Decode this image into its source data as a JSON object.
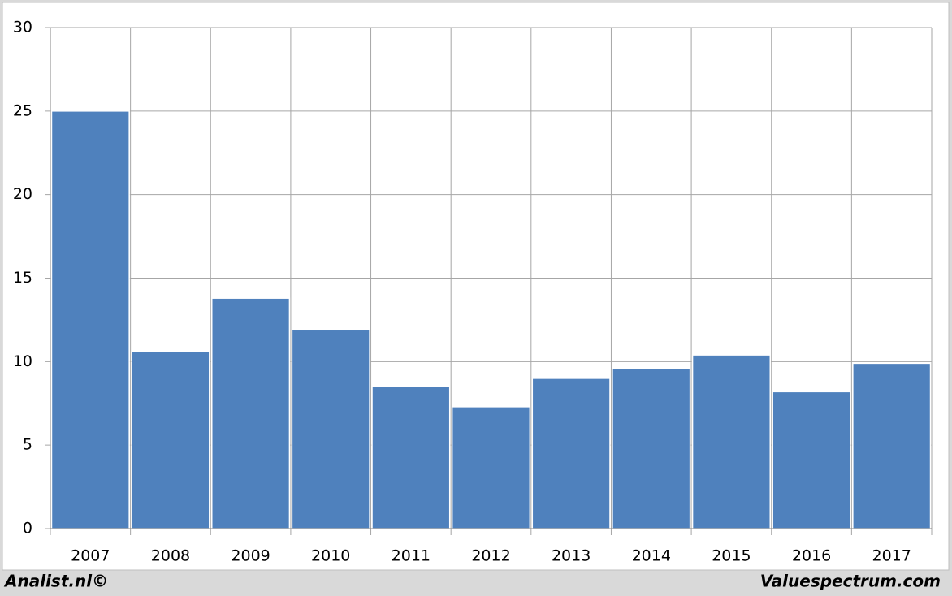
{
  "chart_data": {
    "type": "bar",
    "categories": [
      "2007",
      "2008",
      "2009",
      "2010",
      "2011",
      "2012",
      "2013",
      "2014",
      "2015",
      "2016",
      "2017"
    ],
    "values": [
      25.0,
      10.6,
      13.8,
      11.9,
      8.5,
      7.3,
      9.0,
      9.6,
      10.4,
      8.2,
      9.9
    ],
    "color": "#4f81bd",
    "ylim": [
      0,
      30
    ],
    "yticks": [
      0,
      5,
      10,
      15,
      20,
      25,
      30
    ],
    "grid": true
  },
  "footer": {
    "left": "Analist.nl©",
    "right": "Valuespectrum.com"
  }
}
